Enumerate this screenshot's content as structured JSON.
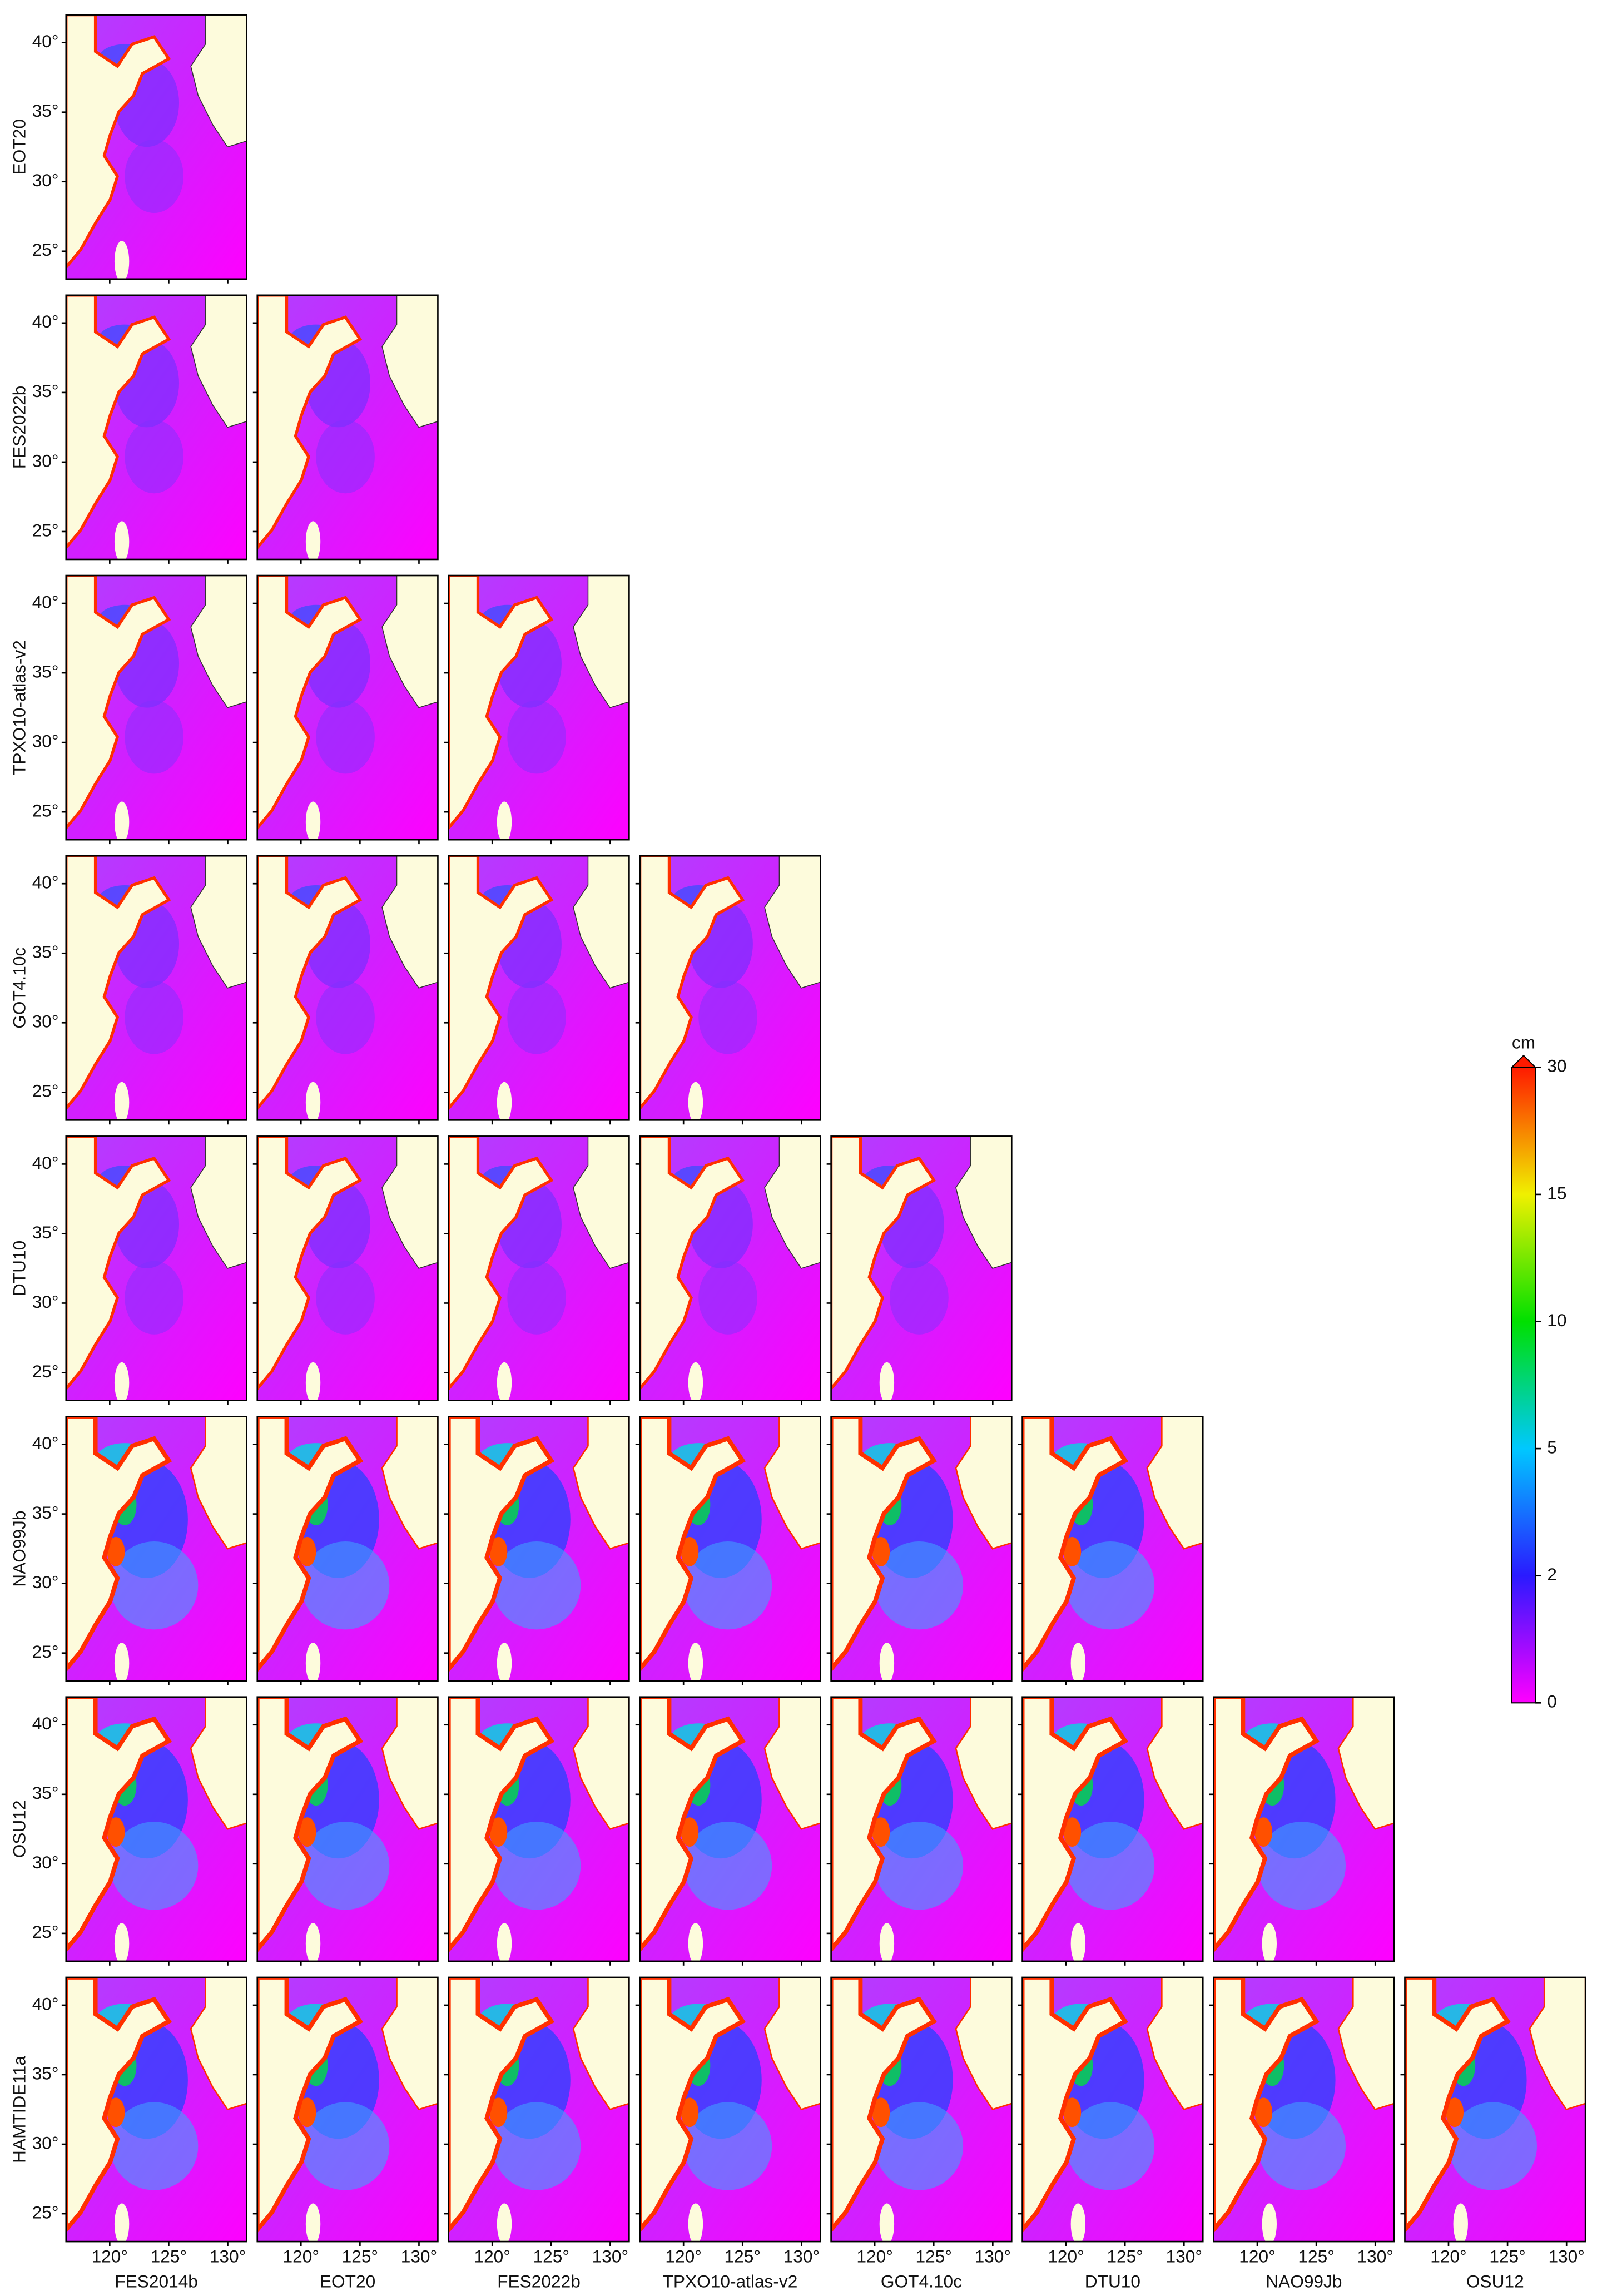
{
  "rows": [
    "EOT20",
    "FES2022b",
    "TPXO10-atlas-v2",
    "GOT4.10c",
    "DTU10",
    "NAO99Jb",
    "OSU12",
    "HAMTIDE11a"
  ],
  "columns": [
    "FES2014b",
    "EOT20",
    "FES2022b",
    "TPXO10-atlas-v2",
    "GOT4.10c",
    "DTU10",
    "NAO99Jb",
    "OSU12"
  ],
  "ylim": [
    23,
    42
  ],
  "xlim": [
    116.3,
    131.6
  ],
  "lat_ticks": [
    {
      "value": 25,
      "label": "25°"
    },
    {
      "value": 30,
      "label": "30°"
    },
    {
      "value": 35,
      "label": "35°"
    },
    {
      "value": 40,
      "label": "40°"
    }
  ],
  "lon_ticks": [
    {
      "value": 120,
      "label": "120°"
    },
    {
      "value": 125,
      "label": "125°"
    },
    {
      "value": 130,
      "label": "130°"
    }
  ],
  "colorbar": {
    "unit": "cm",
    "ticks": [
      0,
      2,
      5,
      10,
      15,
      30
    ],
    "colors": [
      "#ff00ff",
      "#2a1aff",
      "#00c8ff",
      "#00e000",
      "#f0f000",
      "#ff1a00"
    ]
  }
}
